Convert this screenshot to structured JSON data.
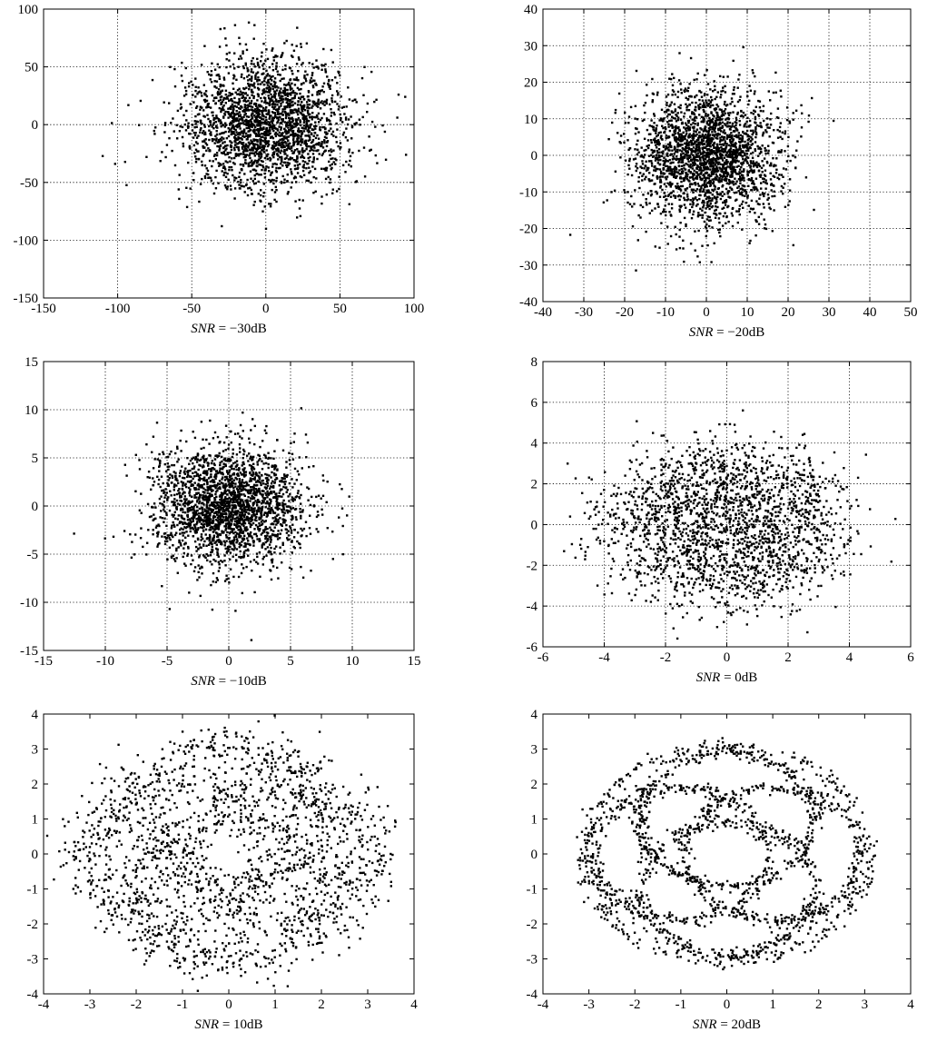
{
  "figure": {
    "background": "#ffffff",
    "marker_color": "#000000",
    "grid": "dotted"
  },
  "chart_data": [
    {
      "type": "scatter",
      "caption_prefix": "SNR",
      "caption_suffix": " = −30dB",
      "xlim": [
        -150,
        100
      ],
      "ylim": [
        -150,
        100
      ],
      "xticks": [
        "-150",
        "-100",
        "-50",
        "0",
        "50",
        "100"
      ],
      "yticks": [
        "-150",
        "-100",
        "-50",
        "0",
        "50",
        "100"
      ],
      "xtick_values": [
        -150,
        -100,
        -50,
        0,
        50,
        100
      ],
      "ytick_values": [
        -150,
        -100,
        -50,
        0,
        50,
        100
      ],
      "grid": true,
      "pattern": "gaussian_cloud",
      "spread": 28,
      "n_points": 2300
    },
    {
      "type": "scatter",
      "caption_prefix": "SNR",
      "caption_suffix": " = −20dB",
      "xlim": [
        -40,
        50
      ],
      "ylim": [
        -40,
        40
      ],
      "xticks": [
        "-40",
        "-30",
        "-20",
        "-10",
        "0",
        "10",
        "20",
        "30",
        "40",
        "50"
      ],
      "yticks": [
        "-40",
        "-30",
        "-20",
        "-10",
        "0",
        "10",
        "20",
        "30",
        "40"
      ],
      "xtick_values": [
        -40,
        -30,
        -20,
        -10,
        0,
        10,
        20,
        30,
        40,
        50
      ],
      "ytick_values": [
        -40,
        -30,
        -20,
        -10,
        0,
        10,
        20,
        30,
        40
      ],
      "grid": true,
      "pattern": "gaussian_cloud",
      "spread": 9,
      "n_points": 2300
    },
    {
      "type": "scatter",
      "caption_prefix": "SNR",
      "caption_suffix": " = −10dB",
      "xlim": [
        -15,
        15
      ],
      "ylim": [
        -15,
        15
      ],
      "xticks": [
        "-15",
        "-10",
        "-5",
        "0",
        "5",
        "10",
        "15"
      ],
      "yticks": [
        "-15",
        "-10",
        "-5",
        "0",
        "5",
        "10",
        "15"
      ],
      "xtick_values": [
        -15,
        -10,
        -5,
        0,
        5,
        10,
        15
      ],
      "ytick_values": [
        -15,
        -10,
        -5,
        0,
        5,
        10,
        15
      ],
      "grid": true,
      "pattern": "gaussian_cloud",
      "spread": 3.1,
      "n_points": 2300
    },
    {
      "type": "scatter",
      "caption_prefix": "SNR",
      "caption_suffix": " = 0dB",
      "xlim": [
        -6,
        6
      ],
      "ylim": [
        -6,
        8
      ],
      "xticks": [
        "-6",
        "-4",
        "-2",
        "0",
        "2",
        "4",
        "6"
      ],
      "yticks": [
        "-6",
        "-4",
        "-2",
        "0",
        "2",
        "4",
        "6",
        "8"
      ],
      "xtick_values": [
        -6,
        -4,
        -2,
        0,
        2,
        4,
        6
      ],
      "ytick_values": [
        -6,
        -4,
        -2,
        0,
        2,
        4,
        6,
        8
      ],
      "grid": true,
      "pattern": "noisy_rings",
      "noise": 1.0,
      "n_points": 2100
    },
    {
      "type": "scatter",
      "caption_prefix": "SNR",
      "caption_suffix": " = 10dB",
      "xlim": [
        -4,
        4
      ],
      "ylim": [
        -4,
        4
      ],
      "xticks": [
        "-4",
        "-3",
        "-2",
        "-1",
        "0",
        "1",
        "2",
        "3",
        "4"
      ],
      "yticks": [
        "-4",
        "-3",
        "-2",
        "-1",
        "0",
        "1",
        "2",
        "3",
        "4"
      ],
      "xtick_values": [
        -4,
        -3,
        -2,
        -1,
        0,
        1,
        2,
        3,
        4
      ],
      "ytick_values": [
        -4,
        -3,
        -2,
        -1,
        0,
        1,
        2,
        3,
        4
      ],
      "grid": false,
      "pattern": "noisy_rings",
      "noise": 0.32,
      "n_points": 2000
    },
    {
      "type": "scatter",
      "caption_prefix": "SNR",
      "caption_suffix": " = 20dB",
      "xlim": [
        -4,
        4
      ],
      "ylim": [
        -4,
        4
      ],
      "xticks": [
        "-4",
        "-3",
        "-2",
        "-1",
        "0",
        "1",
        "2",
        "3",
        "4"
      ],
      "yticks": [
        "-4",
        "-3",
        "-2",
        "-1",
        "0",
        "1",
        "2",
        "3",
        "4"
      ],
      "xtick_values": [
        -4,
        -3,
        -2,
        -1,
        0,
        1,
        2,
        3,
        4
      ],
      "ytick_values": [
        -4,
        -3,
        -2,
        -1,
        0,
        1,
        2,
        3,
        4
      ],
      "grid": false,
      "pattern": "rings",
      "rings": [
        {
          "cx": 0,
          "cy": 0,
          "r": 3.1
        },
        {
          "cx": -1,
          "cy": 0,
          "r": 1.9
        },
        {
          "cx": 1,
          "cy": 0,
          "r": 1.9
        },
        {
          "cx": 0,
          "cy": 1,
          "r": 1.9
        },
        {
          "cx": 0,
          "cy": -1,
          "r": 1.9
        }
      ],
      "noise": 0.1,
      "n_points": 1900
    }
  ]
}
